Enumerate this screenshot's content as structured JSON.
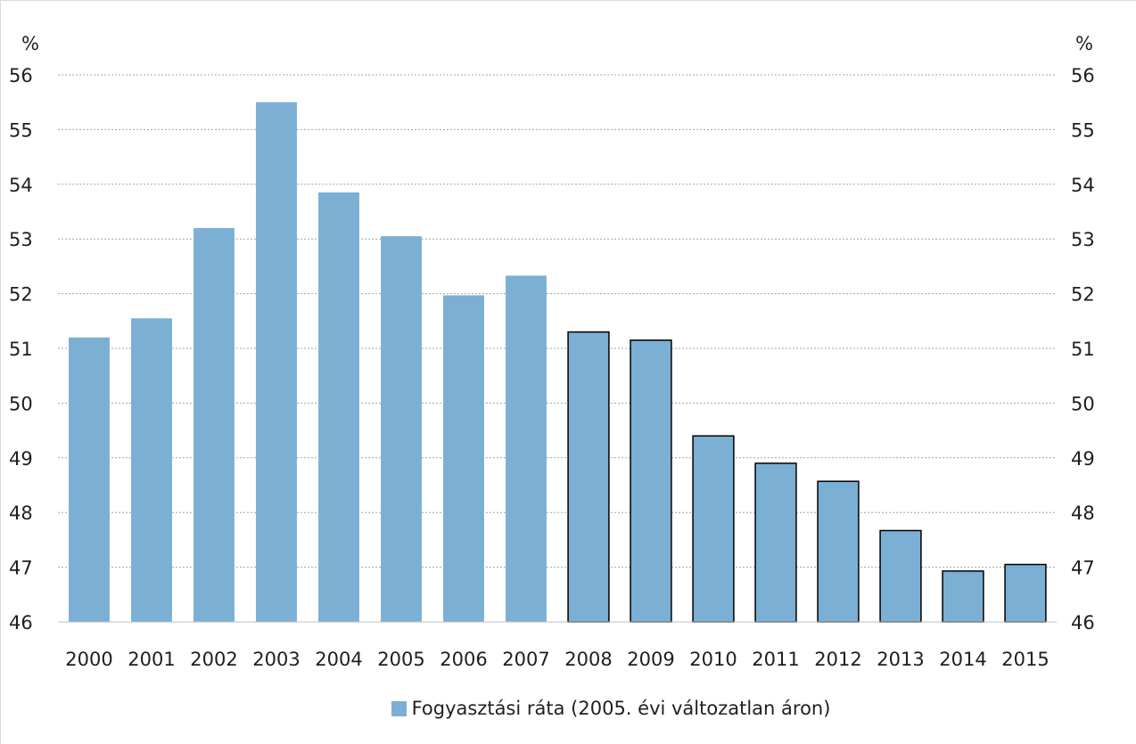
{
  "chart_data": {
    "type": "bar",
    "categories": [
      "2000",
      "2001",
      "2002",
      "2003",
      "2004",
      "2005",
      "2006",
      "2007",
      "2008",
      "2009",
      "2010",
      "2011",
      "2012",
      "2013",
      "2014",
      "2015"
    ],
    "series": [
      {
        "name": "Fogyasztási ráta (2005. évi változatlan áron)",
        "values": [
          51.2,
          51.55,
          53.2,
          55.5,
          53.85,
          53.05,
          51.97,
          52.33,
          51.3,
          51.15,
          49.4,
          48.9,
          48.57,
          47.67,
          46.93,
          47.05
        ],
        "outlined_from_category": "2008"
      }
    ],
    "ylim": [
      46,
      56
    ],
    "y_ticks": [
      "46",
      "47",
      "48",
      "49",
      "50",
      "51",
      "52",
      "53",
      "54",
      "55",
      "56"
    ],
    "left_unit_label": "%",
    "right_unit_label": "%",
    "grid": "horizontal dotted",
    "legend_position": "bottom",
    "colors": {
      "bar_fill": "#7bafd4",
      "bar_outline": "#000000",
      "grid": "#a6a6a6",
      "text": "#1f1f1f",
      "frame": "#d9d9d9"
    }
  }
}
